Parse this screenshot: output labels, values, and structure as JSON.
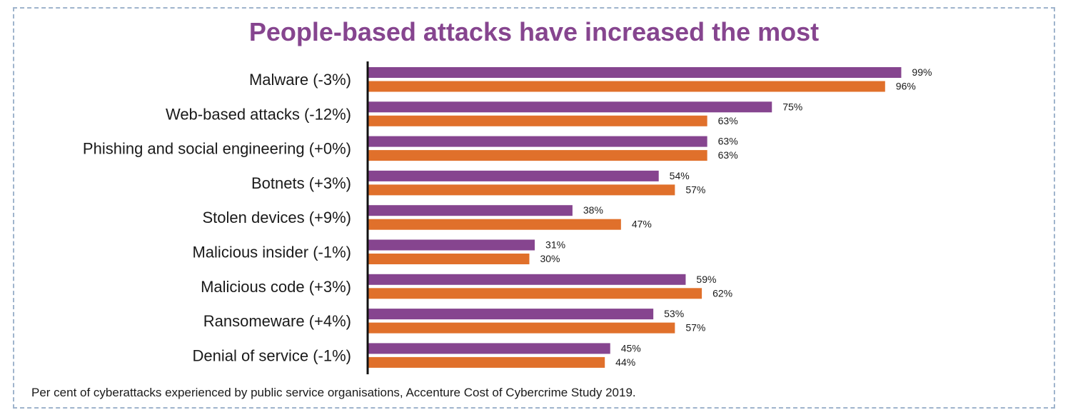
{
  "chart_data": {
    "type": "bar",
    "orientation": "horizontal",
    "title": "People-based attacks have increased the most",
    "caption": "Per cent of cyberattacks experienced by public service organisations, Accenture Cost of Cybercrime Study 2019.",
    "categories": [
      "Malware (-3%)",
      "Web-based attacks (-12%)",
      "Phishing and social engineering (+0%)",
      "Botnets (+3%)",
      "Stolen devices (+9%)",
      "Malicious insider (-1%)",
      "Malicious code (+3%)",
      "Ransomeware (+4%)",
      "Denial of service (-1%)"
    ],
    "series": [
      {
        "values": [
          99,
          75,
          63,
          54,
          38,
          31,
          59,
          53,
          45
        ],
        "color": "#86458f"
      },
      {
        "values": [
          96,
          63,
          63,
          57,
          47,
          30,
          62,
          57,
          44
        ],
        "color": "#e0702b"
      }
    ],
    "value_suffix": "%",
    "xlim": [
      0,
      100
    ],
    "grid": false,
    "legend": "none"
  }
}
